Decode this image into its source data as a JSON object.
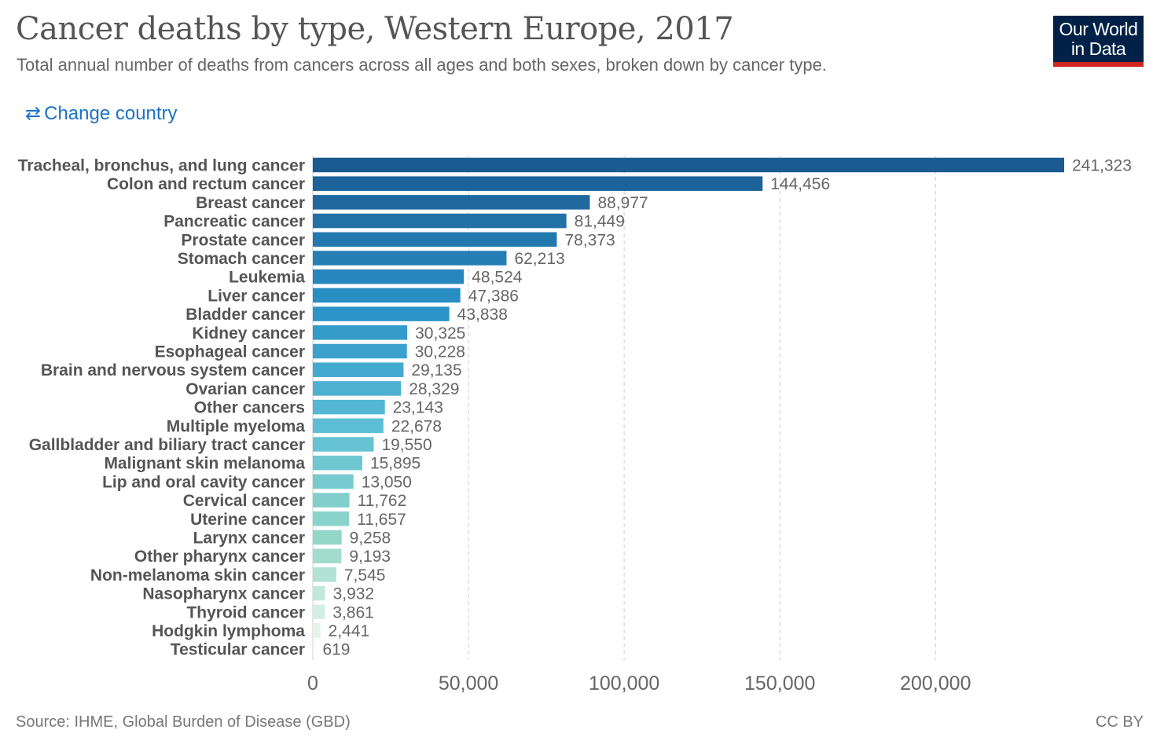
{
  "header": {
    "title": "Cancer deaths by type, Western Europe, 2017",
    "subtitle": "Total annual number of deaths from cancers across all ages and both sexes, broken down by cancer type.",
    "logo_line1": "Our World",
    "logo_line2": "in Data",
    "change_country_label": "Change country",
    "change_country_icon": "swap-arrows-icon"
  },
  "footer": {
    "source": "Source: IHME, Global Burden of Disease (GBD)",
    "license": "CC BY"
  },
  "chart_data": {
    "type": "bar",
    "orientation": "horizontal",
    "title": "Cancer deaths by type, Western Europe, 2017",
    "subtitle": "Total annual number of deaths from cancers across all ages and both sexes, broken down by cancer type.",
    "categories": [
      "Tracheal, bronchus, and lung cancer",
      "Colon and rectum cancer",
      "Breast cancer",
      "Pancreatic cancer",
      "Prostate cancer",
      "Stomach cancer",
      "Leukemia",
      "Liver cancer",
      "Bladder cancer",
      "Kidney cancer",
      "Esophageal cancer",
      "Brain and nervous system cancer",
      "Ovarian cancer",
      "Other cancers",
      "Multiple myeloma",
      "Gallbladder and biliary tract cancer",
      "Malignant skin melanoma",
      "Lip and oral cavity cancer",
      "Cervical cancer",
      "Uterine cancer",
      "Larynx cancer",
      "Other pharynx cancer",
      "Non-melanoma skin cancer",
      "Nasopharynx cancer",
      "Thyroid cancer",
      "Hodgkin lymphoma",
      "Testicular cancer"
    ],
    "values": [
      241323,
      144456,
      88977,
      81449,
      78373,
      62213,
      48524,
      47386,
      43838,
      30325,
      30228,
      29135,
      28329,
      23143,
      22678,
      19550,
      15895,
      13050,
      11762,
      11657,
      9258,
      9193,
      7545,
      3932,
      3861,
      2441,
      619
    ],
    "value_labels": [
      "241,323",
      "144,456",
      "88,977",
      "81,449",
      "78,373",
      "62,213",
      "48,524",
      "47,386",
      "43,838",
      "30,325",
      "30,228",
      "29,135",
      "28,329",
      "23,143",
      "22,678",
      "19,550",
      "15,895",
      "13,050",
      "11,762",
      "11,657",
      "9,258",
      "9,193",
      "7,545",
      "3,932",
      "3,861",
      "2,441",
      "619"
    ],
    "xlim": [
      0,
      241323
    ],
    "x_ticks": [
      0,
      50000,
      100000,
      150000,
      200000
    ],
    "x_tick_labels": [
      "0",
      "50,000",
      "100,000",
      "150,000",
      "200,000"
    ],
    "grid": "vertical-dashed",
    "color_start": "#1b5b91",
    "color_end": "#f2faf0",
    "legend": "none"
  }
}
